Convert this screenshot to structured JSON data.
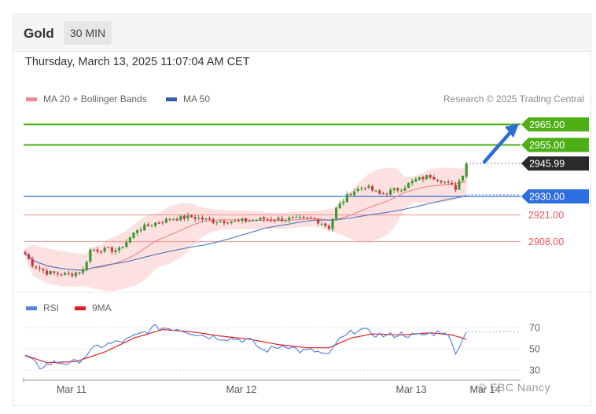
{
  "header": {
    "title": "Gold",
    "timeframe": "30 MIN"
  },
  "datetime": "Thursday, March 13, 2025 11:07:04 AM CET",
  "legend": {
    "ma20_label": "MA 20 + Bollinger Bands",
    "ma50_label": "MA 50",
    "research": "Research © 2025 Trading Central"
  },
  "rsi_legend": {
    "rsi_label": "RSI",
    "ma_label": "9MA"
  },
  "watermark": "© EBC Nancy",
  "colors": {
    "green": "#4caf16",
    "blue": "#2d6fe0",
    "red": "#e85555",
    "candle_up": "#3c9a32",
    "candle_down": "#c43c3c",
    "band": "#fcd6d6",
    "ma20": "#f08a8a",
    "ma50": "#5a7fbf",
    "rsi": "#5b84e0",
    "rsi_ma": "#e02020",
    "price_tag": "#2a2a2a"
  },
  "chart_data": {
    "type": "candlestick",
    "x_tick_labels": [
      "Mar 11",
      "Mar 12",
      "Mar 13",
      "Mar 14"
    ],
    "price_ylim": [
      2888,
      2972
    ],
    "levels": [
      {
        "value": 2965.0,
        "label": "2965.00",
        "kind": "resistance"
      },
      {
        "value": 2955.0,
        "label": "2955.00",
        "kind": "resistance"
      },
      {
        "value": 2945.99,
        "label": "2945.99",
        "kind": "current"
      },
      {
        "value": 2930.0,
        "label": "2930.00",
        "kind": "pivot"
      },
      {
        "value": 2921.0,
        "label": "2921.00",
        "kind": "support"
      },
      {
        "value": 2908.0,
        "label": "2908.00",
        "kind": "support"
      }
    ],
    "close_anchors": [
      [
        0,
        2902
      ],
      [
        2,
        2897
      ],
      [
        6,
        2893
      ],
      [
        12,
        2892
      ],
      [
        16,
        2894
      ],
      [
        18,
        2904
      ],
      [
        26,
        2904
      ],
      [
        31,
        2914
      ],
      [
        36,
        2917
      ],
      [
        40,
        2919
      ],
      [
        46,
        2920
      ],
      [
        52,
        2918
      ],
      [
        60,
        2918
      ],
      [
        66,
        2919
      ],
      [
        74,
        2919
      ],
      [
        80,
        2919
      ],
      [
        84,
        2915
      ],
      [
        86,
        2924
      ],
      [
        90,
        2932
      ],
      [
        94,
        2935
      ],
      [
        98,
        2931
      ],
      [
        104,
        2934
      ],
      [
        108,
        2938
      ],
      [
        112,
        2940
      ],
      [
        115,
        2938
      ],
      [
        119,
        2934
      ],
      [
        121,
        2941
      ],
      [
        122,
        2945.99
      ]
    ],
    "rsi_ylim": [
      25,
      78
    ],
    "rsi_ticks": [
      70,
      50,
      30
    ],
    "rsi_anchors": [
      [
        0,
        43
      ],
      [
        4,
        33
      ],
      [
        8,
        37
      ],
      [
        14,
        37
      ],
      [
        20,
        52
      ],
      [
        28,
        58
      ],
      [
        36,
        70
      ],
      [
        42,
        69
      ],
      [
        50,
        62
      ],
      [
        56,
        60
      ],
      [
        62,
        58
      ],
      [
        66,
        48
      ],
      [
        72,
        54
      ],
      [
        76,
        48
      ],
      [
        80,
        48
      ],
      [
        84,
        43
      ],
      [
        86,
        56
      ],
      [
        92,
        69
      ],
      [
        96,
        64
      ],
      [
        100,
        62
      ],
      [
        104,
        64
      ],
      [
        108,
        62
      ],
      [
        112,
        64
      ],
      [
        116,
        67
      ],
      [
        119,
        48
      ],
      [
        121,
        58
      ],
      [
        122,
        66
      ]
    ],
    "rsi_ma_anchors": [
      [
        0,
        44
      ],
      [
        6,
        37
      ],
      [
        14,
        38
      ],
      [
        22,
        47
      ],
      [
        30,
        60
      ],
      [
        38,
        68
      ],
      [
        46,
        66
      ],
      [
        54,
        62
      ],
      [
        62,
        59
      ],
      [
        70,
        54
      ],
      [
        78,
        51
      ],
      [
        84,
        51
      ],
      [
        90,
        60
      ],
      [
        96,
        64
      ],
      [
        104,
        63
      ],
      [
        112,
        65
      ],
      [
        118,
        63
      ],
      [
        122,
        59
      ]
    ]
  }
}
